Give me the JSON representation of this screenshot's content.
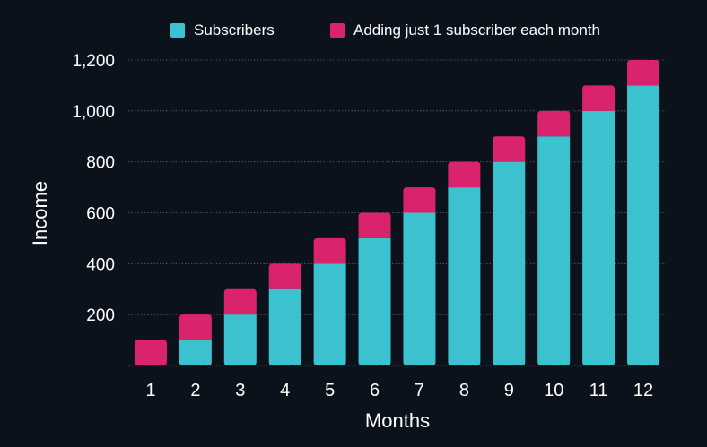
{
  "chart_data": {
    "type": "bar",
    "stacked": true,
    "title": "",
    "xlabel": "Months",
    "ylabel": "Income",
    "categories": [
      "1",
      "2",
      "3",
      "4",
      "5",
      "6",
      "7",
      "8",
      "9",
      "10",
      "11",
      "12"
    ],
    "series": [
      {
        "name": "Subscribers",
        "color": "#3cc1cf",
        "values": [
          0,
          100,
          200,
          300,
          400,
          500,
          600,
          700,
          800,
          900,
          1000,
          1100
        ]
      },
      {
        "name": "Adding just 1 subscriber each month",
        "color": "#d9246d",
        "values": [
          100,
          100,
          100,
          100,
          100,
          100,
          100,
          100,
          100,
          100,
          100,
          100
        ]
      }
    ],
    "ylim": [
      0,
      1200
    ],
    "yticks": [
      "200",
      "400",
      "600",
      "800",
      "1,000",
      "1,200"
    ],
    "ytick_values": [
      200,
      400,
      600,
      800,
      1000,
      1200
    ],
    "grid": true,
    "legend_position": "top"
  },
  "colors": {
    "background": "#0c121c",
    "grid": "#5a606b",
    "text": "#ffffff"
  }
}
